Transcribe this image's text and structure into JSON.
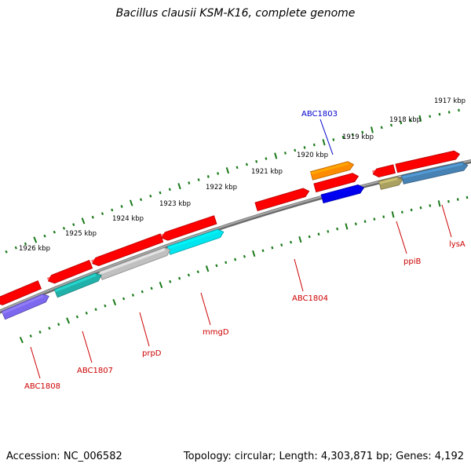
{
  "title": "Bacillus clausii KSM-K16, complete genome",
  "accession_text": "Accession: NC_006582",
  "summary_text": "Topology: circular; Length: 4,303,871 bp; Genes: 4,192",
  "colors": {
    "backbone": "#8c8c8c",
    "tick": "#1a7a1a",
    "label_red": "#cc0000",
    "label_blue": "#0000cc"
  },
  "scale_labels": [
    "1917 kbp",
    "1918 kbp",
    "1919 kbp",
    "1920 kbp",
    "1921 kbp",
    "1922 kbp",
    "1923 kbp",
    "1924 kbp",
    "1925 kbp",
    "1926 kbp"
  ],
  "gene_labels": [
    {
      "text": "ABC1803",
      "color": "blue"
    },
    {
      "text": "ppiB",
      "color": "red"
    },
    {
      "text": "lysA",
      "color": "red"
    },
    {
      "text": "ABC1804",
      "color": "red"
    },
    {
      "text": "mmgD",
      "color": "red"
    },
    {
      "text": "prpD",
      "color": "red"
    },
    {
      "text": "ABC1807",
      "color": "red"
    },
    {
      "text": "ABC1808",
      "color": "red"
    }
  ],
  "features": [
    {
      "color": "#ff0000",
      "label": ""
    },
    {
      "color": "#0000ee",
      "label": "ABC1803"
    },
    {
      "color": "#ff8c00",
      "label": ""
    },
    {
      "color": "#ff0000",
      "label": ""
    },
    {
      "color": "#aaa060",
      "label": "ppiB"
    },
    {
      "color": "#ff0000",
      "label": ""
    },
    {
      "color": "#4682b4",
      "label": "lysA"
    },
    {
      "color": "#ff0000",
      "label": "ABC1804"
    },
    {
      "color": "#ff0000",
      "label": ""
    },
    {
      "color": "#00e5ee",
      "label": "mmgD"
    },
    {
      "color": "#ff0000",
      "label": ""
    },
    {
      "color": "#c0c0c0",
      "label": "prpD"
    },
    {
      "color": "#ff0000",
      "label": ""
    },
    {
      "color": "#20b2aa",
      "label": "ABC1807"
    },
    {
      "color": "#ff0000",
      "label": ""
    },
    {
      "color": "#7b68ee",
      "label": "ABC1808"
    }
  ]
}
